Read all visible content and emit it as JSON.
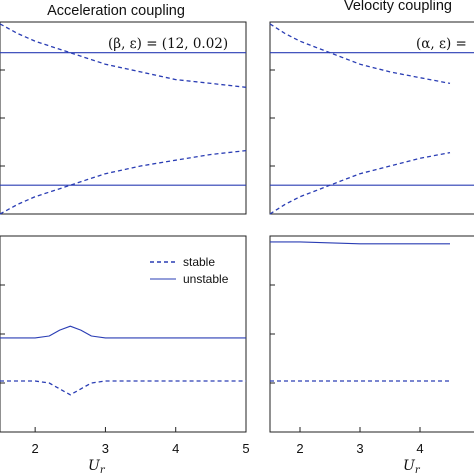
{
  "chart_data": [
    {
      "type": "line",
      "title": "Acceleration coupling",
      "annotation": "(β, ε) = (12, 0.02)",
      "xlim": [
        1.5,
        5
      ],
      "ylim": [
        0,
        1
      ],
      "grid": false,
      "series": [
        {
          "style": "solid",
          "x": [
            1.5,
            5
          ],
          "y": [
            0.84,
            0.84
          ]
        },
        {
          "style": "solid",
          "x": [
            1.5,
            5
          ],
          "y": [
            0.15,
            0.15
          ]
        },
        {
          "style": "dashed",
          "x": [
            1.5,
            1.75,
            2.0,
            2.25,
            2.5,
            2.75,
            3.0,
            3.5,
            4.0,
            4.5,
            5.0
          ],
          "y": [
            0.99,
            0.94,
            0.9,
            0.87,
            0.84,
            0.81,
            0.78,
            0.74,
            0.7,
            0.68,
            0.66
          ]
        },
        {
          "style": "dashed",
          "x": [
            1.5,
            1.75,
            2.0,
            2.25,
            2.5,
            2.75,
            3.0,
            3.5,
            4.0,
            4.5,
            5.0
          ],
          "y": [
            0.0,
            0.05,
            0.09,
            0.12,
            0.15,
            0.18,
            0.21,
            0.25,
            0.28,
            0.31,
            0.33
          ]
        }
      ]
    },
    {
      "type": "line",
      "title": "Velocity coupling",
      "annotation": "(α, ε) =",
      "xlim": [
        1.5,
        5
      ],
      "ylim": [
        0,
        1
      ],
      "grid": false,
      "series": [
        {
          "style": "solid",
          "x": [
            1.5,
            5
          ],
          "y": [
            0.84,
            0.84
          ]
        },
        {
          "style": "solid",
          "x": [
            1.5,
            5
          ],
          "y": [
            0.15,
            0.15
          ]
        },
        {
          "style": "dashed",
          "x": [
            1.5,
            1.75,
            2.0,
            2.25,
            2.5,
            2.75,
            3.0,
            3.5,
            4.0,
            4.5
          ],
          "y": [
            0.99,
            0.94,
            0.9,
            0.87,
            0.84,
            0.81,
            0.78,
            0.74,
            0.71,
            0.68
          ]
        },
        {
          "style": "dashed",
          "x": [
            1.5,
            1.75,
            2.0,
            2.25,
            2.5,
            2.75,
            3.0,
            3.5,
            4.0,
            4.5
          ],
          "y": [
            0.0,
            0.05,
            0.09,
            0.12,
            0.15,
            0.18,
            0.21,
            0.25,
            0.29,
            0.32
          ]
        }
      ]
    },
    {
      "type": "line",
      "xlabel": "U_r",
      "xticks": [
        2,
        3,
        4,
        5
      ],
      "xlim": [
        1.5,
        5
      ],
      "ylim": [
        0,
        1
      ],
      "grid": false,
      "legend": {
        "position": "top-right",
        "entries": [
          "stable",
          "unstable"
        ]
      },
      "series": [
        {
          "name": "stable",
          "style": "dashed",
          "x": [
            1.5,
            2.0,
            2.2,
            2.35,
            2.5,
            2.65,
            2.8,
            3.0,
            4.0,
            5.0
          ],
          "y": [
            0.26,
            0.26,
            0.25,
            0.22,
            0.19,
            0.22,
            0.25,
            0.26,
            0.26,
            0.26
          ]
        },
        {
          "name": "unstable",
          "style": "solid",
          "x": [
            1.5,
            2.0,
            2.2,
            2.35,
            2.5,
            2.65,
            2.8,
            3.0,
            4.0,
            5.0
          ],
          "y": [
            0.48,
            0.48,
            0.49,
            0.52,
            0.54,
            0.52,
            0.49,
            0.48,
            0.48,
            0.48
          ]
        }
      ]
    },
    {
      "type": "line",
      "xlabel": "U_r",
      "xticks": [
        2,
        3,
        4
      ],
      "xlim": [
        1.5,
        5
      ],
      "ylim": [
        0,
        1
      ],
      "grid": false,
      "series": [
        {
          "style": "solid",
          "x": [
            1.5,
            2.0,
            3.0,
            4.0,
            4.5
          ],
          "y": [
            0.97,
            0.97,
            0.96,
            0.96,
            0.96
          ]
        },
        {
          "style": "dashed",
          "x": [
            1.5,
            2.0,
            3.0,
            4.0,
            4.5
          ],
          "y": [
            0.26,
            0.26,
            0.26,
            0.26,
            0.26
          ]
        }
      ]
    }
  ],
  "colors": {
    "line": "#2a3db4",
    "axes": "#222222"
  }
}
